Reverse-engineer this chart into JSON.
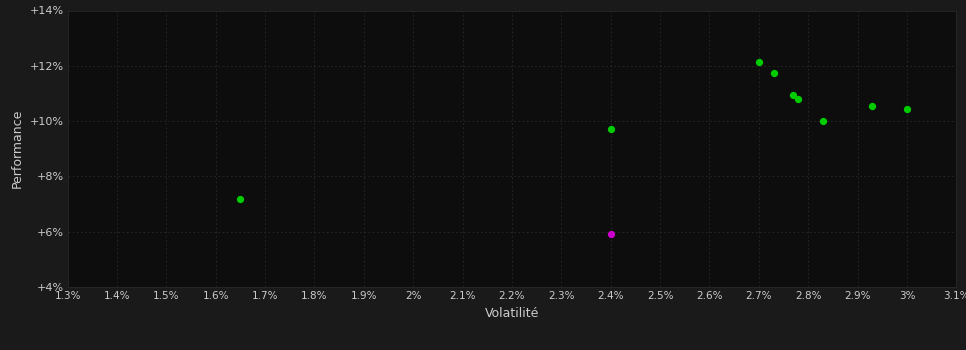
{
  "background_color": "#1a1a1a",
  "plot_bg_color": "#0d0d0d",
  "grid_color": "#2a2a2a",
  "text_color": "#cccccc",
  "xlabel": "Volatilité",
  "ylabel": "Performance",
  "xlim": [
    0.013,
    0.031
  ],
  "ylim": [
    0.04,
    0.14
  ],
  "xticks": [
    0.013,
    0.014,
    0.015,
    0.016,
    0.017,
    0.018,
    0.019,
    0.02,
    0.021,
    0.022,
    0.023,
    0.024,
    0.025,
    0.026,
    0.027,
    0.028,
    0.029,
    0.03,
    0.031
  ],
  "xtick_labels": [
    "1.3%",
    "1.4%",
    "1.5%",
    "1.6%",
    "1.7%",
    "1.8%",
    "1.9%",
    "2%",
    "2.1%",
    "2.2%",
    "2.3%",
    "2.4%",
    "2.5%",
    "2.6%",
    "2.7%",
    "2.8%",
    "2.9%",
    "3%",
    "3.1%"
  ],
  "yticks": [
    0.04,
    0.06,
    0.08,
    0.1,
    0.12,
    0.14
  ],
  "ytick_labels": [
    "+4%",
    "+6%",
    "+8%",
    "+10%",
    "+12%",
    "+14%"
  ],
  "green_points": [
    [
      0.0165,
      0.072
    ],
    [
      0.024,
      0.097
    ],
    [
      0.027,
      0.1215
    ],
    [
      0.0273,
      0.1175
    ],
    [
      0.0277,
      0.1095
    ],
    [
      0.0278,
      0.108
    ],
    [
      0.0283,
      0.1
    ],
    [
      0.0293,
      0.1055
    ],
    [
      0.03,
      0.1045
    ]
  ],
  "magenta_points": [
    [
      0.024,
      0.059
    ]
  ],
  "point_size": 18,
  "green_color": "#00cc00",
  "magenta_color": "#cc00cc"
}
